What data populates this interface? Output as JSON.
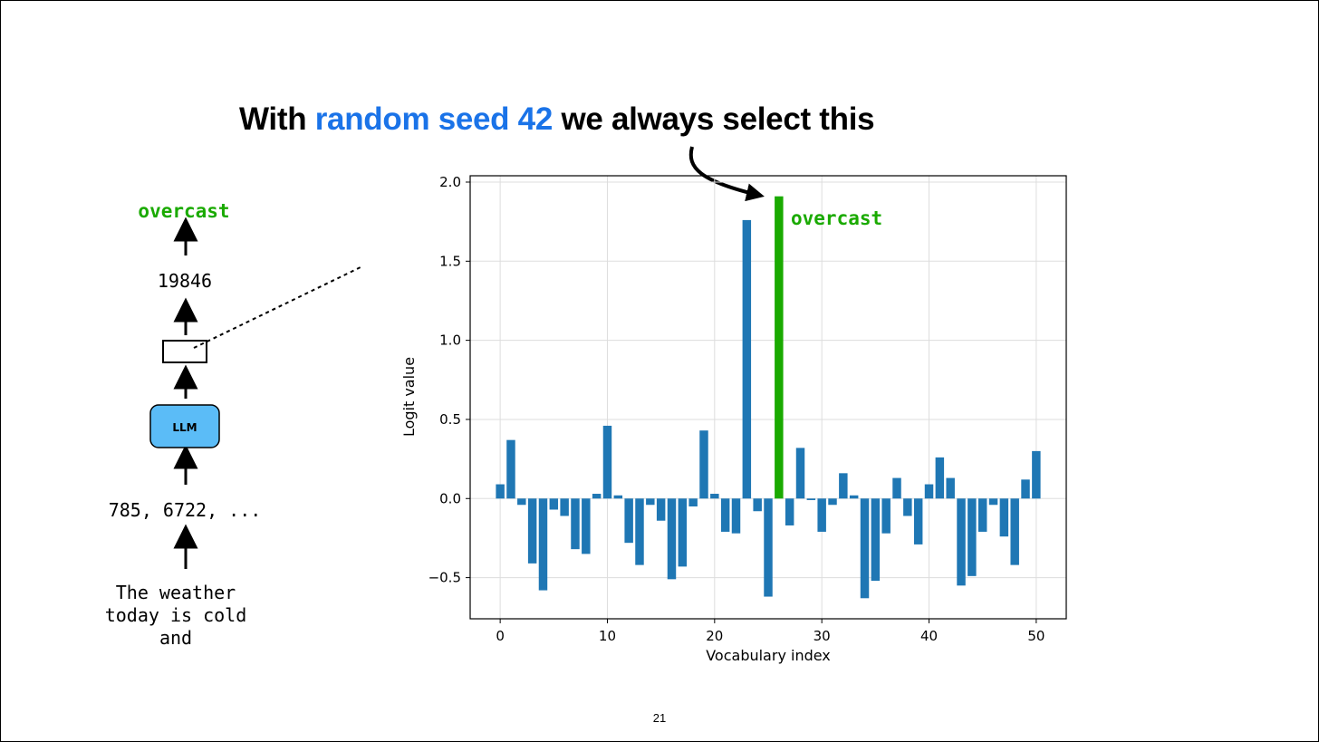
{
  "slide": {
    "headline_pre": "With ",
    "headline_highlight": "random seed 42",
    "headline_post": " we always select this",
    "page_number": "21",
    "colors": {
      "highlight": "#1a73e8",
      "selected": "#1aaa00",
      "bar": "#1f77b4",
      "llm_box": "#5bbcf7"
    }
  },
  "flow": {
    "output_token": "overcast",
    "token_id": "19846",
    "model_label": "LLM",
    "input_ids": "785, 6722, ...",
    "prompt": "The weather\ntoday is cold\nand"
  },
  "chart_data": {
    "type": "bar",
    "x": [
      0,
      1,
      2,
      3,
      4,
      5,
      6,
      7,
      8,
      9,
      10,
      11,
      12,
      13,
      14,
      15,
      16,
      17,
      18,
      19,
      20,
      21,
      22,
      23,
      24,
      25,
      26,
      27,
      28,
      29,
      30,
      31,
      32,
      33,
      34,
      35,
      36,
      37,
      38,
      39,
      40,
      41,
      42,
      43,
      44,
      45,
      46,
      47,
      48,
      49,
      50
    ],
    "values": [
      0.09,
      0.37,
      -0.04,
      -0.41,
      -0.58,
      -0.07,
      -0.11,
      -0.32,
      -0.35,
      0.03,
      0.46,
      0.02,
      -0.28,
      -0.42,
      -0.04,
      -0.14,
      -0.51,
      -0.43,
      -0.05,
      0.43,
      0.03,
      -0.21,
      -0.22,
      1.76,
      -0.08,
      -0.62,
      1.91,
      -0.17,
      0.32,
      -0.01,
      -0.21,
      -0.04,
      0.16,
      0.02,
      -0.63,
      -0.52,
      -0.22,
      0.13,
      -0.11,
      -0.29,
      0.09,
      0.26,
      0.13,
      -0.55,
      -0.49,
      -0.21,
      -0.04,
      -0.24,
      -0.42,
      0.12,
      0.3
    ],
    "highlight_index": 26,
    "highlight_label": "overcast",
    "xlabel": "Vocabulary index",
    "ylabel": "Logit value",
    "xticks": [
      "0",
      "10",
      "20",
      "30",
      "40",
      "50"
    ],
    "yticks": [
      "−0.5",
      "0.0",
      "0.5",
      "1.0",
      "1.5",
      "2.0"
    ],
    "xlim": [
      -2.8,
      52.8
    ],
    "ylim": [
      -0.76,
      2.04
    ],
    "grid": true
  }
}
